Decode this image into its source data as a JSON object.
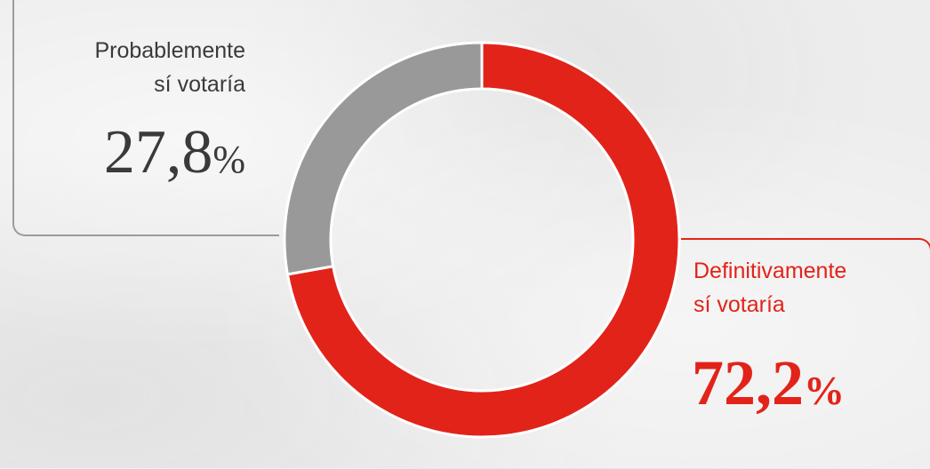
{
  "chart_data": {
    "type": "pie",
    "subtype": "donut",
    "categories": [
      "Definitivamente sí votaría",
      "Probablemente sí votaría"
    ],
    "values": [
      72.2,
      27.8
    ],
    "unit": "%",
    "colors": [
      "#e2231a",
      "#999999"
    ],
    "labels": [
      {
        "name_line1": "Definitivamente",
        "name_line2": "sí votaría",
        "value": "72,2",
        "unit": "%",
        "color": "#e2231a"
      },
      {
        "name_line1": "Probablemente",
        "name_line2": "sí votaría",
        "value": "27,8",
        "unit": "%",
        "color": "#3a3a3a"
      }
    ]
  }
}
